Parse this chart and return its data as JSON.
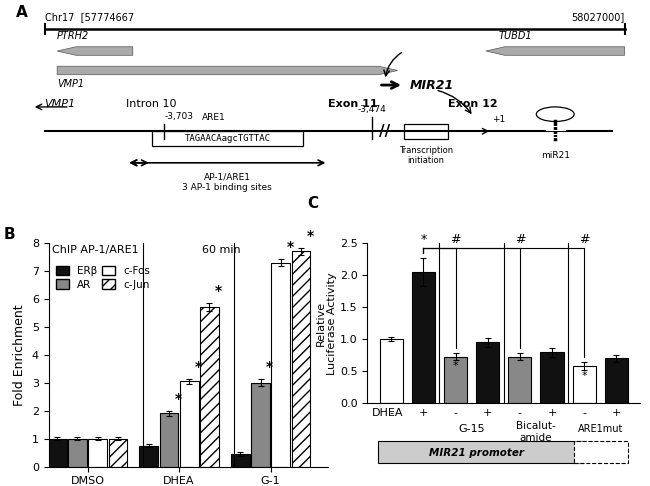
{
  "panel_B": {
    "title_part1": "ChIP AP-1/ARE1",
    "title_part2": "60 min",
    "ylabel": "Fold Enrichment",
    "groups": [
      "DMSO",
      "DHEA",
      "G-1"
    ],
    "series": [
      "ERβ",
      "AR",
      "c-Fos",
      "c-Jun"
    ],
    "values": {
      "DMSO": [
        1.0,
        1.0,
        1.0,
        1.0
      ],
      "DHEA": [
        0.75,
        1.9,
        3.05,
        5.7
      ],
      "G-1": [
        0.45,
        3.0,
        7.3,
        7.7
      ]
    },
    "errors": {
      "DMSO": [
        0.05,
        0.05,
        0.05,
        0.05
      ],
      "DHEA": [
        0.05,
        0.1,
        0.1,
        0.15
      ],
      "G-1": [
        0.07,
        0.12,
        0.13,
        0.13
      ]
    },
    "sig_stars": {
      "DMSO": [
        false,
        false,
        false,
        false
      ],
      "DHEA": [
        false,
        true,
        true,
        true
      ],
      "G-1": [
        false,
        true,
        true,
        true
      ]
    },
    "ylim": [
      0,
      8
    ],
    "yticks": [
      0,
      1,
      2,
      3,
      4,
      5,
      6,
      7,
      8
    ]
  },
  "panel_C": {
    "ylabel1": "Relative",
    "ylabel2": "Luciferase Activity",
    "values": [
      1.0,
      2.05,
      0.73,
      0.95,
      0.73,
      0.8,
      0.58,
      0.7
    ],
    "errors": [
      0.03,
      0.22,
      0.05,
      0.07,
      0.05,
      0.07,
      0.06,
      0.05
    ],
    "colors": [
      "#ffffff",
      "#111111",
      "#888888",
      "#111111",
      "#888888",
      "#111111",
      "#ffffff",
      "#111111"
    ],
    "dhea_labels": [
      "-",
      "+",
      "-",
      "+",
      "-",
      "+",
      "-",
      "+"
    ],
    "ylim": [
      0,
      2.5
    ],
    "yticks": [
      0.0,
      0.5,
      1.0,
      1.5,
      2.0,
      2.5
    ]
  }
}
